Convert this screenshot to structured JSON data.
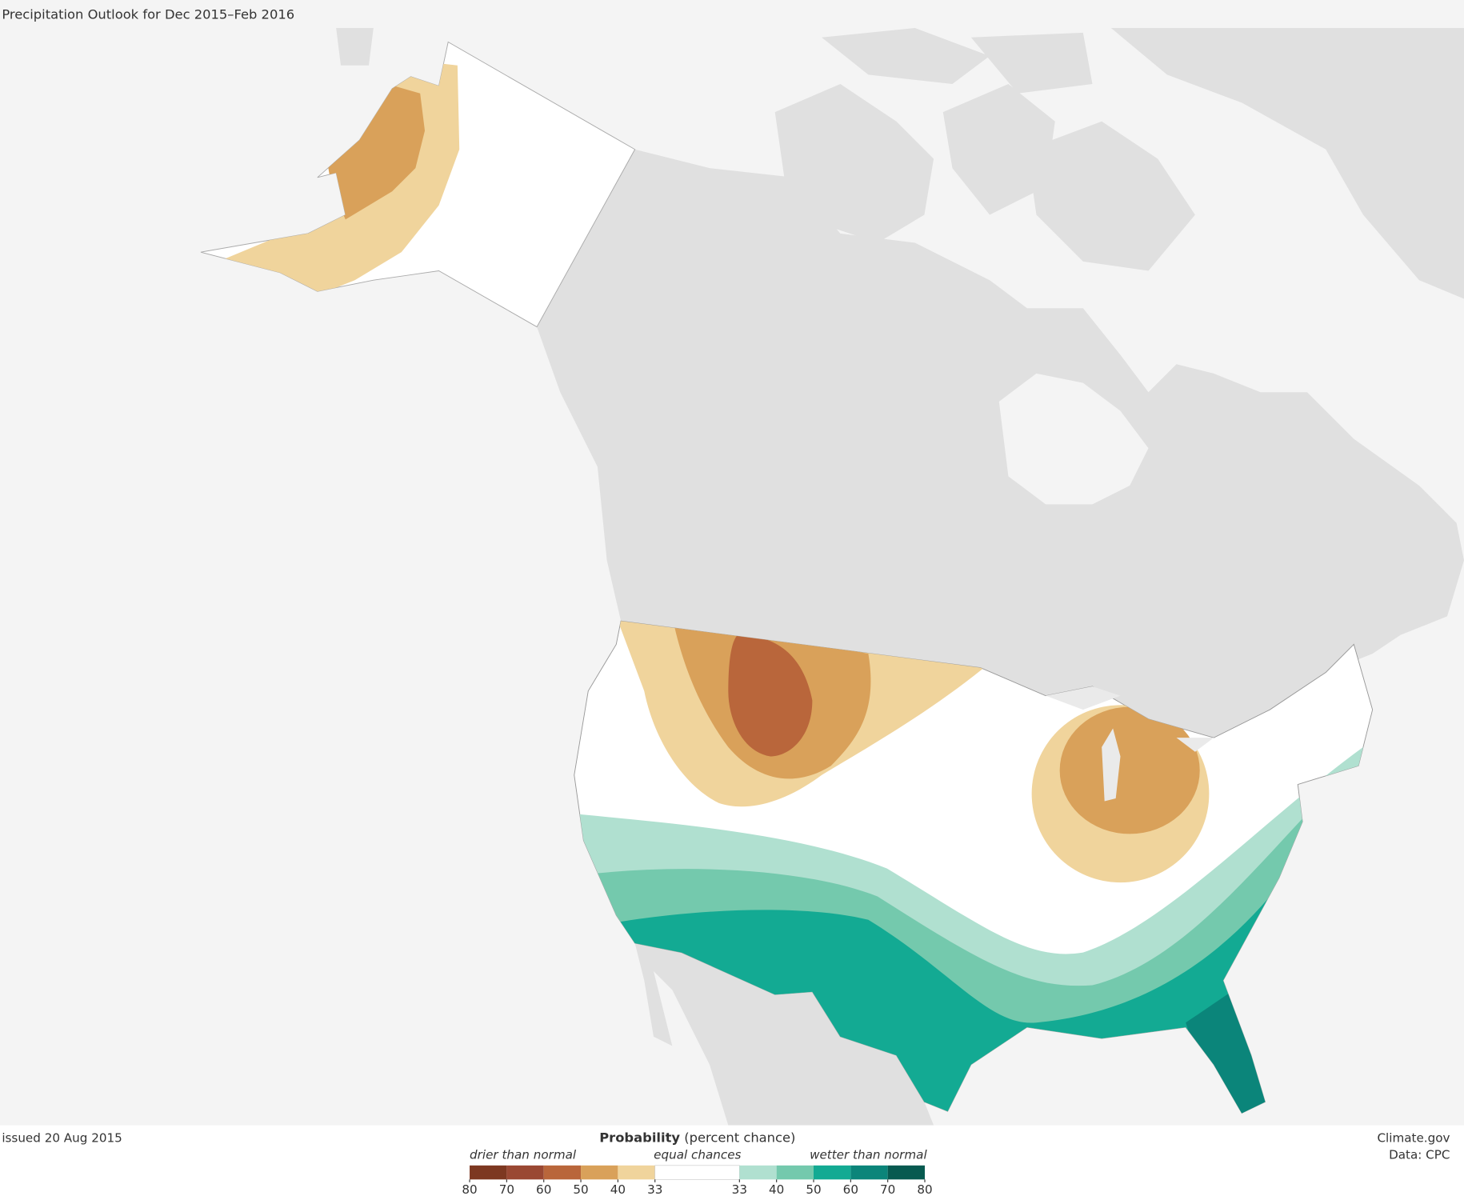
{
  "title": "Precipitation Outlook for Dec 2015–Feb 2016",
  "issued": "issued 20 Aug 2015",
  "legend": {
    "title_bold": "Probability",
    "title_rest": "(percent chance)",
    "drier": "drier than normal",
    "equal": "equal chances",
    "wetter": "wetter than normal",
    "dry_ticks": [
      80,
      70,
      60,
      50,
      40,
      33
    ],
    "wet_ticks": [
      33,
      40,
      50,
      60,
      70,
      80
    ],
    "dry_colors": [
      "#7d3821",
      "#9a4833",
      "#b9663b",
      "#d9a15a",
      "#f0d49c"
    ],
    "wet_colors": [
      "#b0e0d0",
      "#74c9ad",
      "#13aa93",
      "#0b857a",
      "#075a50"
    ]
  },
  "credit": "Climate.gov",
  "source": "Data: CPC"
}
